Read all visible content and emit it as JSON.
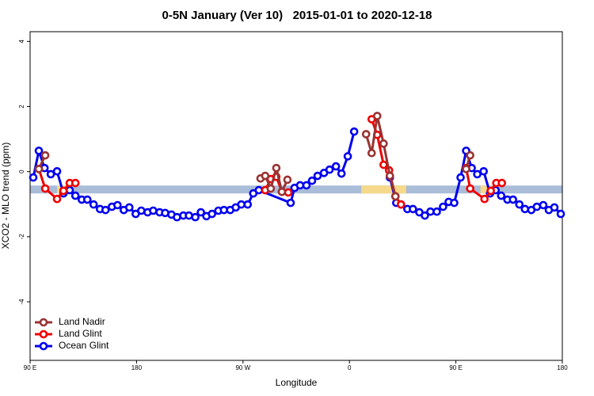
{
  "chart_data": {
    "type": "line",
    "title": "0-5N January (Ver 10)   2015-01-01 to 2020-12-18",
    "x_label": "Longitude",
    "y_label": "XCO2 - MLO trend (ppm)",
    "xlim": [
      90,
      540
    ],
    "ylim": [
      -5.8,
      4.3
    ],
    "xticks": [
      {
        "value": 90,
        "label": "90 E"
      },
      180,
      {
        "value": 270,
        "label": "90 W"
      },
      {
        "value": 360,
        "label": "0"
      },
      {
        "value": 450,
        "label": "90 E"
      },
      {
        "value": 540,
        "label": "180"
      }
    ],
    "yticks": [
      -4,
      -2,
      0,
      2,
      4
    ],
    "legend": "bottom-left",
    "band": {
      "y": -0.55,
      "color": "#a9bcd8",
      "land_color": "#f6d98a",
      "land": [
        [
          112.8,
          121.6
        ],
        [
          370,
          408
        ],
        [
          470.8,
          479.5
        ]
      ]
    },
    "series": [
      {
        "name": "Land Nadir",
        "color": "#993333",
        "x": [
          97.4,
          102.8,
          null,
          284.8,
          288.8,
          293.5,
          298.2,
          302.9,
          307.6,
          null,
          374.1,
          378.8,
          383.5,
          388.9,
          394.2,
          398.9,
          null,
          458.7,
          462.1
        ],
        "values": [
          0.08,
          0.5,
          null,
          -0.21,
          -0.13,
          -0.52,
          0.11,
          -0.62,
          -0.25,
          null,
          1.15,
          0.57,
          1.71,
          0.86,
          -0.13,
          -0.76,
          null,
          0.08,
          0.5
        ]
      },
      {
        "name": "Land Glint",
        "color": "#ee0000",
        "x": [
          97.4,
          102.8,
          112.8,
          118.2,
          123.5,
          128.3,
          null,
          288.8,
          293.5,
          298.2,
          302.9,
          308.3,
          null,
          378.8,
          383.5,
          388.9,
          393.5,
          398.9,
          403.6,
          null,
          458.7,
          462.1,
          474.2,
          479.5,
          484.2,
          488.9
        ],
        "values": [
          0.08,
          -0.52,
          -0.84,
          -0.59,
          -0.35,
          -0.35,
          null,
          -0.57,
          -0.23,
          -0.16,
          -0.62,
          -0.64,
          null,
          1.61,
          1.13,
          0.21,
          0.04,
          -0.76,
          -1.01,
          null,
          0.11,
          -0.52,
          -0.84,
          -0.59,
          -0.35,
          -0.35
        ]
      },
      {
        "name": "Ocean Glint",
        "color": "#0000ee",
        "x": [
          92.7,
          97.4,
          102.2,
          107.5,
          112.8,
          118.2,
          123.5,
          128.3,
          133.7,
          138.4,
          143.7,
          149.1,
          153.8,
          159.2,
          163.9,
          169.2,
          173.9,
          179.3,
          184.0,
          189.4,
          194.1,
          199.5,
          204.2,
          209.5,
          214.2,
          219.6,
          224.3,
          229.7,
          234.4,
          239.1,
          243.8,
          249.2,
          253.9,
          259.2,
          263.9,
          268.6,
          274.0,
          278.7,
          283.4,
          310.3,
          313.6,
          318.3,
          323.7,
          328.4,
          333.1,
          338.5,
          343.2,
          348.6,
          353.3,
          358.6,
          364.0,
          null,
          394.2,
          399.6,
          403.6,
          409.0,
          413.7,
          419.1,
          423.8,
          428.5,
          433.9,
          439.2,
          443.9,
          448.6,
          454.0,
          458.7,
          463.4,
          468.1,
          473.5,
          478.9,
          483.6,
          488.3,
          493.6,
          498.3,
          503.7,
          508.4,
          513.8,
          518.5,
          523.9,
          528.6,
          533.3,
          538.7
        ],
        "values": [
          -0.18,
          0.64,
          0.11,
          -0.08,
          0.01,
          -0.67,
          -0.57,
          -0.74,
          -0.86,
          -0.86,
          -1.01,
          -1.15,
          -1.18,
          -1.08,
          -1.03,
          -1.18,
          -1.1,
          -1.3,
          -1.2,
          -1.25,
          -1.2,
          -1.25,
          -1.27,
          -1.32,
          -1.4,
          -1.35,
          -1.35,
          -1.4,
          -1.25,
          -1.37,
          -1.3,
          -1.2,
          -1.18,
          -1.18,
          -1.1,
          -1.01,
          -1.01,
          -0.67,
          -0.57,
          -0.96,
          -0.5,
          -0.42,
          -0.42,
          -0.28,
          -0.13,
          -0.04,
          0.06,
          0.16,
          -0.06,
          0.47,
          1.23,
          null,
          -0.18,
          -0.96,
          -1.01,
          -1.15,
          -1.15,
          -1.25,
          -1.35,
          -1.23,
          -1.23,
          -1.08,
          -0.93,
          -0.96,
          -0.18,
          0.64,
          0.11,
          -0.08,
          0.01,
          -0.67,
          -0.57,
          -0.74,
          -0.86,
          -0.86,
          -1.01,
          -1.15,
          -1.18,
          -1.08,
          -1.03,
          -1.18,
          -1.1,
          -1.3
        ]
      }
    ]
  }
}
